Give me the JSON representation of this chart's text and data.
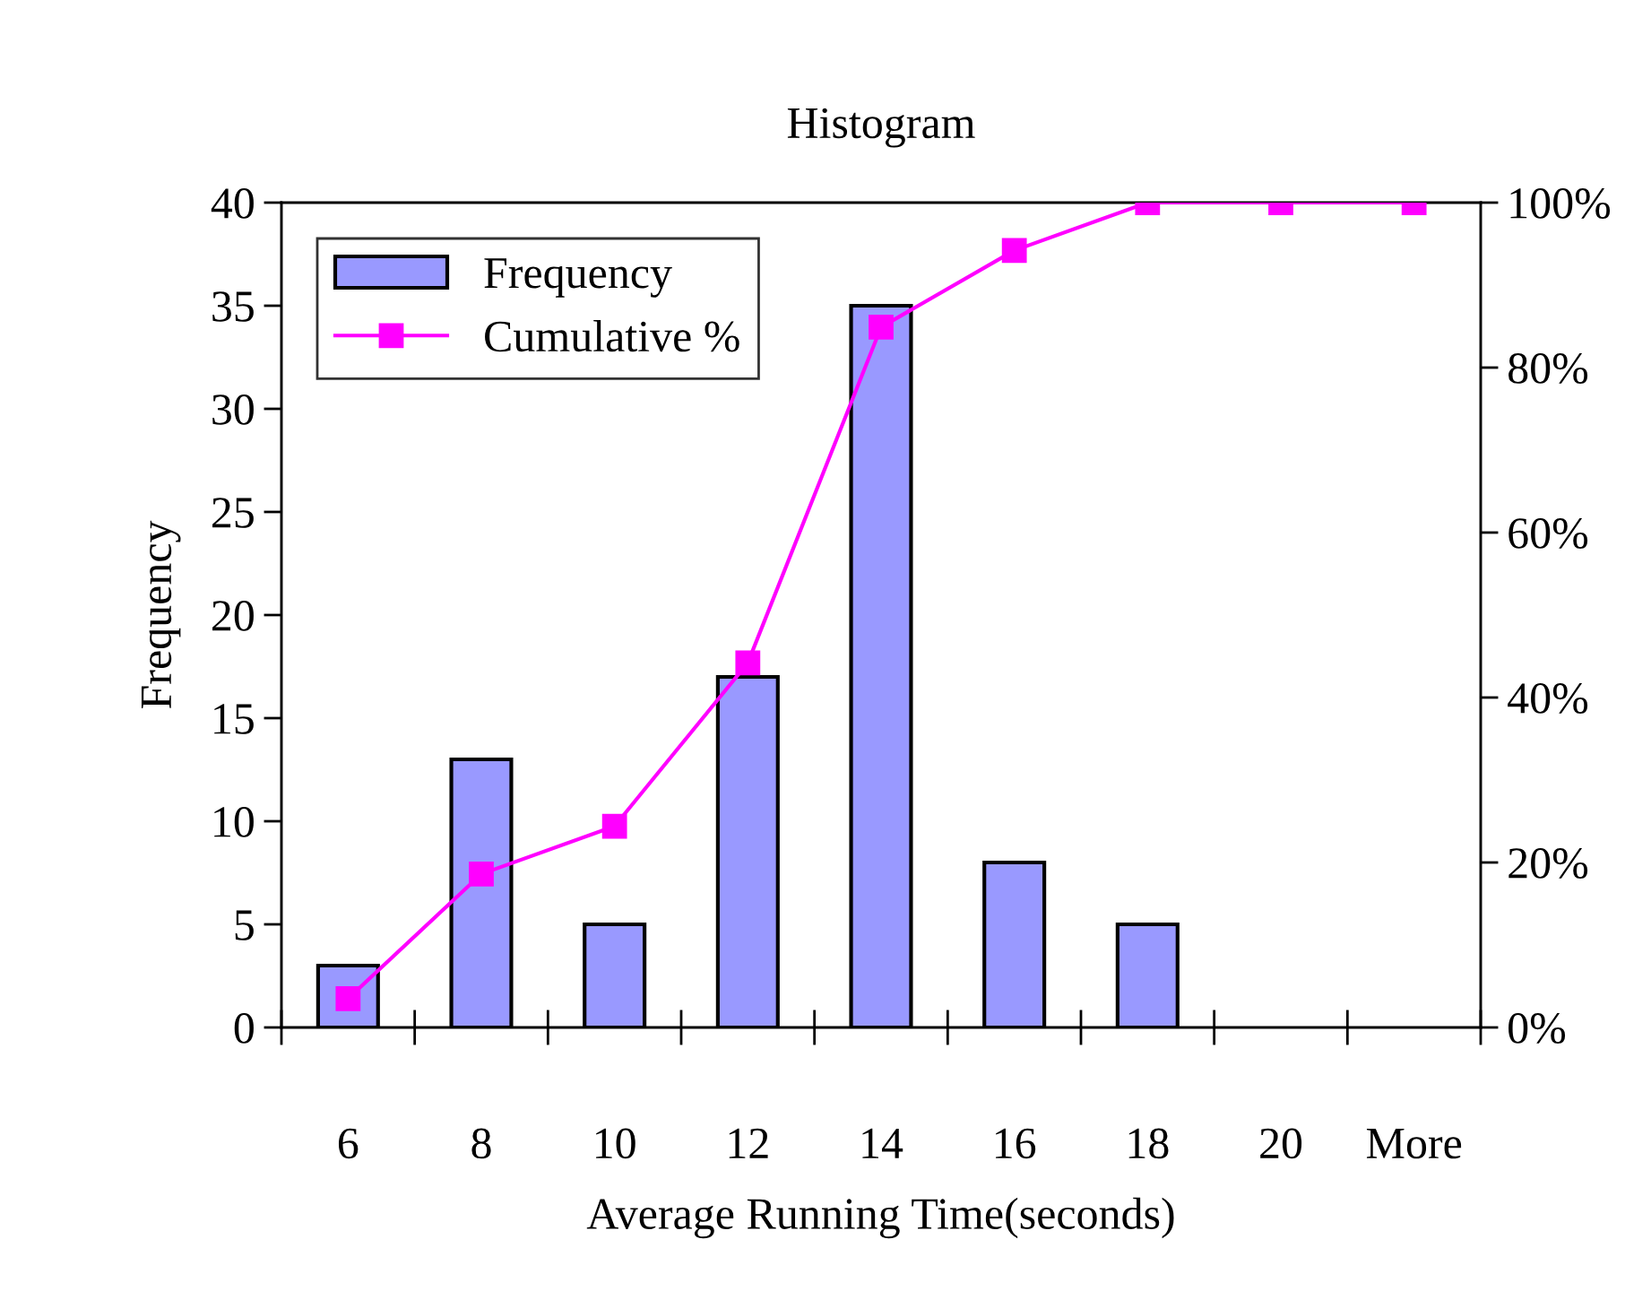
{
  "chart_data": {
    "type": "bar",
    "title": "Histogram",
    "xlabel": "Average Running Time(seconds)",
    "ylabel": "Frequency",
    "categories": [
      "6",
      "8",
      "10",
      "12",
      "14",
      "16",
      "18",
      "20",
      "More"
    ],
    "series": [
      {
        "name": "Frequency",
        "color": "#9999ff",
        "values": [
          3,
          13,
          5,
          17,
          35,
          8,
          5,
          0,
          0
        ]
      },
      {
        "name": "Cumulative %",
        "type": "line",
        "axis": "y2",
        "color": "#ff00ff",
        "marker": "square",
        "line_style": "solid",
        "values": [
          3.5,
          18.6,
          24.4,
          44.2,
          84.9,
          94.2,
          100,
          100,
          100
        ]
      }
    ],
    "ylim": [
      0,
      40
    ],
    "yticks": [
      0,
      5,
      10,
      15,
      20,
      25,
      30,
      35,
      40
    ],
    "y2lim": [
      0,
      100
    ],
    "y2ticks": [
      {
        "value": 0,
        "label": "0%"
      },
      {
        "value": 20,
        "label": "20%"
      },
      {
        "value": 40,
        "label": "40%"
      },
      {
        "value": 60,
        "label": "60%"
      },
      {
        "value": 80,
        "label": "80%"
      },
      {
        "value": 100,
        "label": "100%"
      }
    ],
    "legend": "top left",
    "grid": false
  }
}
